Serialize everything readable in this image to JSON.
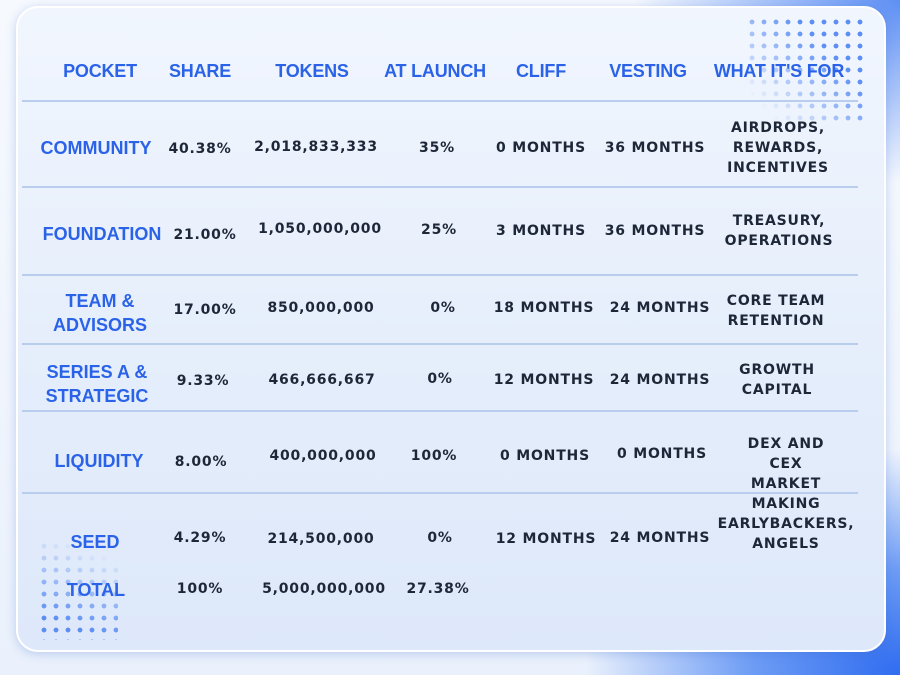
{
  "headers": {
    "pocket": "POCKET",
    "share": "SHARE",
    "tokens": "TOKENS",
    "at_launch": "AT LAUNCH",
    "cliff": "CLIFF",
    "vesting": "VESTING",
    "purpose": "WHAT IT'S FOR"
  },
  "rows": [
    {
      "pocket": "COMMUNITY",
      "share": "40.38%",
      "tokens": "2,018,833,333",
      "at_launch": "35%",
      "cliff": "0 MONTHS",
      "vesting": "36 MONTHS",
      "purpose": "AIRDROPS,\nREWARDS,\nINCENTIVES"
    },
    {
      "pocket": "FOUNDATION",
      "share": "21.00%",
      "tokens": "1,050,000,000",
      "at_launch": "25%",
      "cliff": "3 MONTHS",
      "vesting": "36 MONTHS",
      "purpose": "TREASURY,\nOPERATIONS"
    },
    {
      "pocket": "TEAM &\nADVISORS",
      "share": "17.00%",
      "tokens": "850,000,000",
      "at_launch": "0%",
      "cliff": "18 MONTHS",
      "vesting": "24 MONTHS",
      "purpose": "CORE TEAM\nRETENTION"
    },
    {
      "pocket": "SERIES A &\nSTRATEGIC",
      "share": "9.33%",
      "tokens": "466,666,667",
      "at_launch": "0%",
      "cliff": "12 MONTHS",
      "vesting": "24 MONTHS",
      "purpose": "GROWTH\nCAPITAL"
    },
    {
      "pocket": "LIQUIDITY",
      "share": "8.00%",
      "tokens": "400,000,000",
      "at_launch": "100%",
      "cliff": "0 MONTHS",
      "vesting": "0 MONTHS",
      "purpose": "DEX AND CEX\nMARKET MAKING"
    },
    {
      "pocket": "SEED",
      "share": "4.29%",
      "tokens": "214,500,000",
      "at_launch": "0%",
      "cliff": "12 MONTHS",
      "vesting": "24 MONTHS",
      "purpose": "EARLYBACKERS,\nANGELS"
    }
  ],
  "total": {
    "pocket": "TOTAL",
    "share": "100%",
    "tokens": "5,000,000,000",
    "at_launch": "27.38%"
  },
  "colors": {
    "accent": "#2b63e8",
    "text": "#1d2738",
    "divider": "#b9cdee"
  }
}
